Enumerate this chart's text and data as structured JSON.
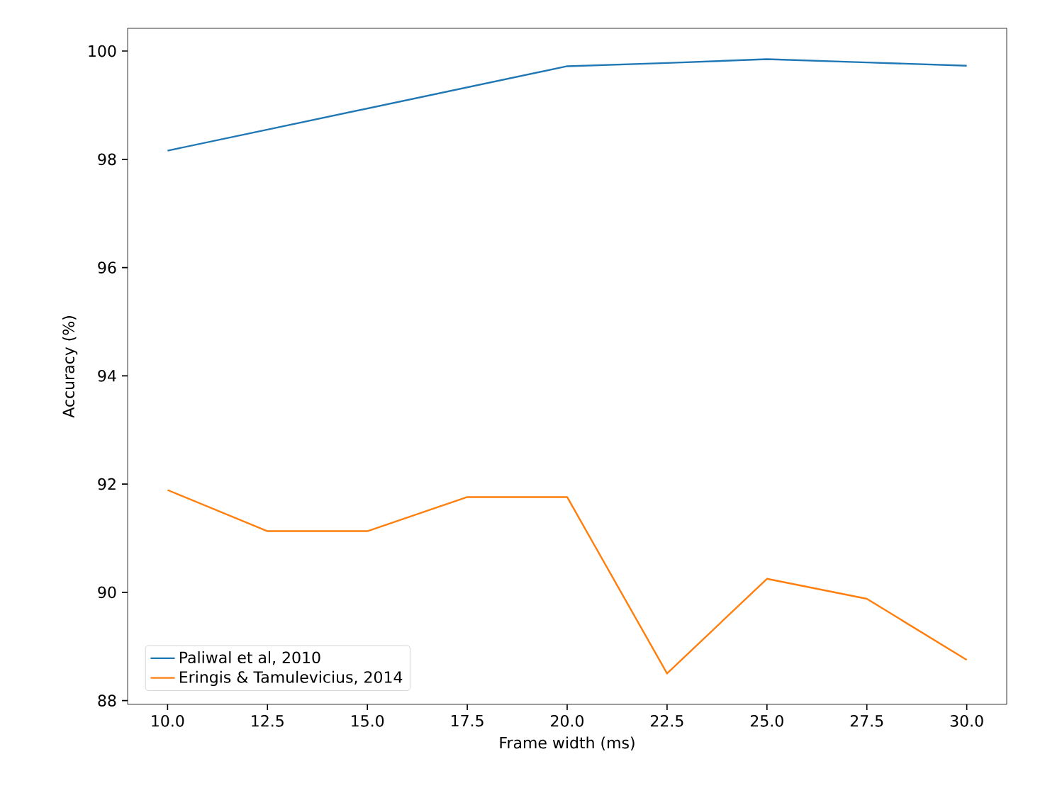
{
  "chart_data": {
    "type": "line",
    "xlabel": "Frame width (ms)",
    "ylabel": "Accuracy (%)",
    "x": [
      10.0,
      12.5,
      15.0,
      17.5,
      20.0,
      22.5,
      25.0,
      27.5,
      30.0
    ],
    "series": [
      {
        "name": "Paliwal et al, 2010",
        "color": "#1f77b4",
        "values": [
          98.16,
          98.55,
          98.94,
          99.33,
          99.72,
          99.78,
          99.85,
          99.79,
          99.73
        ]
      },
      {
        "name": "Eringis & Tamulevicius, 2014",
        "color": "#ff7f0e",
        "values": [
          91.89,
          91.13,
          91.13,
          91.76,
          91.76,
          88.5,
          90.25,
          89.88,
          88.75
        ]
      }
    ],
    "xlim": [
      9.0,
      31.0
    ],
    "ylim": [
      87.93,
      100.42
    ],
    "xticks": [
      {
        "value": 10,
        "label": "10.0"
      },
      {
        "value": 12.5,
        "label": "12.5"
      },
      {
        "value": 15,
        "label": "15.0"
      },
      {
        "value": 17.5,
        "label": "17.5"
      },
      {
        "value": 20,
        "label": "20.0"
      },
      {
        "value": 22.5,
        "label": "22.5"
      },
      {
        "value": 25,
        "label": "25.0"
      },
      {
        "value": 27.5,
        "label": "27.5"
      },
      {
        "value": 30,
        "label": "30.0"
      }
    ],
    "yticks": [
      88,
      90,
      92,
      94,
      96,
      98,
      100
    ],
    "legend": "bottom left",
    "grid": false,
    "marker": "none",
    "line_style": "solid"
  }
}
